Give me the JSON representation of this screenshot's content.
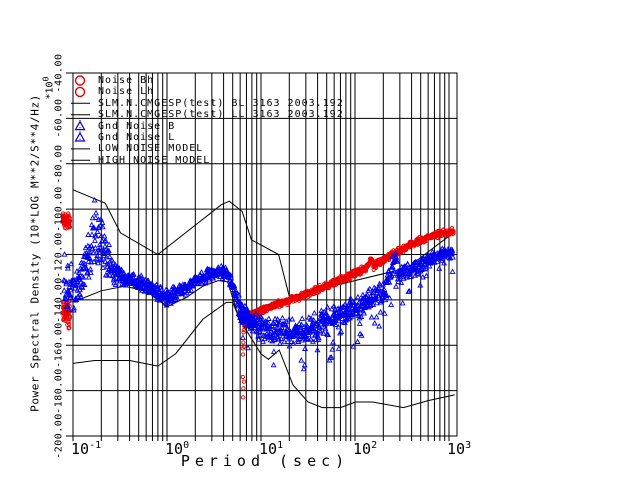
{
  "figure": {
    "background": "#ffffff",
    "grid_color": "#000000",
    "x_axis": {
      "title": "Period (sec)",
      "scale": "log",
      "tick_base": "10",
      "tick_exponents": [
        -1,
        0,
        1,
        2,
        3
      ]
    },
    "y_axis": {
      "title": "Power Spectral Density (10*LOG M**2/S**4/Hz)",
      "multiplier_base": "*10",
      "multiplier_exp": "0",
      "ticks": [
        {
          "value": -40,
          "label": "-40.00"
        },
        {
          "value": -60,
          "label": "-60.00"
        },
        {
          "value": -80,
          "label": "-80.00"
        },
        {
          "value": -100,
          "label": "-100.00"
        },
        {
          "value": -120,
          "label": "-120.00"
        },
        {
          "value": -140,
          "label": "-140.00"
        },
        {
          "value": -160,
          "label": "-160.00"
        },
        {
          "value": -180,
          "label": "-180.00"
        },
        {
          "value": -200,
          "label": "-200.00"
        }
      ]
    }
  },
  "chart_data": {
    "type": "scatter",
    "title": "",
    "xlabel": "Period (sec)",
    "ylabel": "Power Spectral Density (10*LOG M**2/S**4/Hz)",
    "x_scale": "log",
    "x_range": [
      0.1,
      1150
    ],
    "y_range": [
      -200,
      -40
    ],
    "grid": true,
    "legend_position": "top-left",
    "series": [
      {
        "key": "noise-bh",
        "name": "Noise Bh",
        "color": "#ee0000",
        "type": "band",
        "marker": "circle",
        "legend_marker": "circle",
        "n": 60,
        "segments": [
          [
            [
              0.078,
              -104,
              4
            ],
            [
              0.093,
              -106,
              4
            ]
          ],
          [
            [
              0.078,
              -144,
              6
            ],
            [
              0.093,
              -147,
              7
            ]
          ]
        ]
      },
      {
        "key": "noise-lh",
        "name": "Noise Lh",
        "color": "#ee0000",
        "type": "band",
        "marker": "circle",
        "legend_marker": "circle",
        "n": 800,
        "segments": [
          [
            [
              6.4,
              -158,
              14
            ],
            [
              6.8,
              -149,
              4
            ],
            [
              7.5,
              -147.5,
              1.8
            ],
            [
              9,
              -145.5,
              1.8
            ],
            [
              11,
              -144,
              1.8
            ],
            [
              14,
              -142.5,
              1.8
            ],
            [
              18,
              -141,
              1.8
            ],
            [
              23,
              -139.5,
              1.8
            ],
            [
              30,
              -137.5,
              1.8
            ],
            [
              40,
              -135.5,
              1.8
            ],
            [
              52,
              -133.5,
              1.8
            ],
            [
              68,
              -131.5,
              1.8
            ],
            [
              88,
              -129.5,
              1.8
            ],
            [
              110,
              -127.5,
              1.8
            ],
            [
              135,
              -125.5,
              1.8
            ],
            [
              148,
              -121.5,
              1.8
            ],
            [
              158,
              -125.5,
              1.8
            ],
            [
              175,
              -123.5,
              1.8
            ],
            [
              220,
              -121.5,
              1.8
            ],
            [
              280,
              -119,
              1.8
            ],
            [
              360,
              -116.5,
              1.8
            ],
            [
              450,
              -114.5,
              1.8
            ],
            [
              560,
              -113,
              1.8
            ],
            [
              700,
              -111.5,
              1.8
            ],
            [
              850,
              -110.5,
              1.8
            ],
            [
              1000,
              -110,
              1.8
            ],
            [
              1120,
              -110,
              1.8
            ]
          ]
        ],
        "outliers": [
          [
            6.4,
            -174
          ],
          [
            6.5,
            -179
          ],
          [
            6.45,
            -183
          ],
          [
            6.6,
            -176
          ]
        ]
      },
      {
        "key": "slm-bl",
        "name": "SLM.N.CMGESP(test) BL 3163 2003.192",
        "color": "#000000",
        "type": "line",
        "legend_marker": "line",
        "segments": [
          [
            [
              0.1,
              -141
            ],
            [
              0.2,
              -136
            ],
            [
              0.35,
              -134
            ],
            [
              0.6,
              -136
            ],
            [
              1.0,
              -143
            ],
            [
              1.6,
              -139
            ],
            [
              2.4,
              -134
            ],
            [
              3.5,
              -131.5
            ],
            [
              4.4,
              -132
            ],
            [
              5.0,
              -139
            ],
            [
              6.0,
              -150
            ],
            [
              7.0,
              -152
            ],
            [
              8.0,
              -153.5
            ]
          ]
        ]
      },
      {
        "key": "slm-ll",
        "name": "SLM.N.CMGESP(test) LL 3163 2003.192",
        "color": "#000000",
        "type": "line",
        "legend_marker": "line",
        "segments": [
          [
            [
              6.5,
              -146
            ],
            [
              9,
              -144
            ],
            [
              14,
              -141
            ],
            [
              22,
              -138.5
            ],
            [
              35,
              -135.5
            ],
            [
              55,
              -132.5
            ],
            [
              85,
              -129.5
            ],
            [
              120,
              -126.5
            ],
            [
              150,
              -124
            ],
            [
              200,
              -122
            ],
            [
              300,
              -118.5
            ],
            [
              450,
              -115
            ],
            [
              650,
              -112.5
            ],
            [
              900,
              -110.5
            ],
            [
              1120,
              -110
            ]
          ]
        ]
      },
      {
        "key": "gnd-noise-b",
        "name": "Gnd Noise B",
        "color": "#0000ee",
        "type": "band",
        "marker": "triangle",
        "legend_marker": "triangle",
        "n": 650,
        "segments": [
          [
            [
              0.08,
              -132,
              18
            ],
            [
              0.09,
              -134,
              14
            ],
            [
              0.1,
              -136,
              10
            ],
            [
              0.12,
              -132,
              9
            ],
            [
              0.14,
              -124,
              14
            ],
            [
              0.16,
              -110,
              18
            ],
            [
              0.18,
              -112,
              20
            ],
            [
              0.2,
              -118,
              16
            ],
            [
              0.24,
              -124,
              10
            ],
            [
              0.3,
              -129,
              5
            ],
            [
              0.4,
              -131,
              4
            ],
            [
              0.55,
              -133,
              4
            ],
            [
              0.75,
              -136,
              4
            ],
            [
              1.0,
              -139,
              4
            ],
            [
              1.4,
              -136,
              3.5
            ],
            [
              2.0,
              -132,
              3.5
            ],
            [
              2.8,
              -129,
              3.5
            ],
            [
              3.8,
              -127.5,
              3.5
            ],
            [
              4.6,
              -129,
              4
            ],
            [
              5.2,
              -136,
              5
            ],
            [
              6.0,
              -144,
              5
            ],
            [
              7.0,
              -147,
              5
            ],
            [
              8.0,
              -149,
              5
            ]
          ]
        ]
      },
      {
        "key": "gnd-noise-l",
        "name": "Gnd Noise L",
        "color": "#0000ee",
        "type": "band",
        "marker": "triangle",
        "legend_marker": "triangle",
        "n": 700,
        "outlier_rate": 0.05,
        "segments": [
          [
            [
              6,
              -147,
              4
            ],
            [
              8,
              -150,
              5
            ],
            [
              10,
              -152,
              6
            ],
            [
              13,
              -154,
              6
            ],
            [
              17,
              -154,
              7
            ],
            [
              22,
              -155,
              7
            ],
            [
              28,
              -154,
              7
            ],
            [
              36,
              -152,
              7
            ],
            [
              47,
              -150,
              7
            ],
            [
              60,
              -148,
              6
            ],
            [
              80,
              -146,
              6
            ],
            [
              100,
              -144,
              6
            ],
            [
              130,
              -141,
              5
            ],
            [
              165,
              -138,
              5
            ],
            [
              210,
              -135,
              5
            ],
            [
              255,
              -125,
              6
            ],
            [
              270,
              -121,
              4
            ],
            [
              290,
              -130,
              5
            ],
            [
              350,
              -128,
              4
            ],
            [
              430,
              -126,
              4
            ],
            [
              530,
              -124,
              4
            ],
            [
              650,
              -122,
              3.5
            ],
            [
              800,
              -120,
              3.5
            ],
            [
              950,
              -119.5,
              3.5
            ],
            [
              1100,
              -120,
              3.5
            ]
          ]
        ]
      },
      {
        "key": "low-noise-model",
        "name": "LOW NOISE MODEL",
        "color": "#000000",
        "type": "line",
        "legend_marker": "line",
        "segments": [
          [
            [
              0.1,
              -168
            ],
            [
              0.17,
              -166.7
            ],
            [
              0.4,
              -166.7
            ],
            [
              0.8,
              -169.2
            ],
            [
              1.24,
              -163.7
            ],
            [
              2.4,
              -148.6
            ],
            [
              4.3,
              -141.1
            ],
            [
              5.0,
              -141.1
            ],
            [
              6.0,
              -149
            ],
            [
              10,
              -163.8
            ],
            [
              12,
              -166.2
            ],
            [
              15.6,
              -162.1
            ],
            [
              21.9,
              -177.5
            ],
            [
              31.6,
              -185
            ],
            [
              45,
              -187.5
            ],
            [
              70,
              -187.5
            ],
            [
              101,
              -185
            ],
            [
              154,
              -185
            ],
            [
              328,
              -187.5
            ],
            [
              600,
              -184.4
            ],
            [
              1150,
              -181.9
            ]
          ]
        ]
      },
      {
        "key": "high-noise-model",
        "name": "HIGH NOISE MODEL",
        "color": "#000000",
        "type": "line",
        "legend_marker": "line",
        "segments": [
          [
            [
              0.1,
              -91.5
            ],
            [
              0.22,
              -97.4
            ],
            [
              0.32,
              -110.5
            ],
            [
              0.8,
              -120
            ],
            [
              3.8,
              -98
            ],
            [
              4.6,
              -96.5
            ],
            [
              6.3,
              -101
            ],
            [
              7.9,
              -113.5
            ],
            [
              15.4,
              -120
            ],
            [
              20,
              -138.5
            ],
            [
              354.8,
              -126
            ],
            [
              1150,
              -110
            ]
          ]
        ]
      }
    ]
  }
}
